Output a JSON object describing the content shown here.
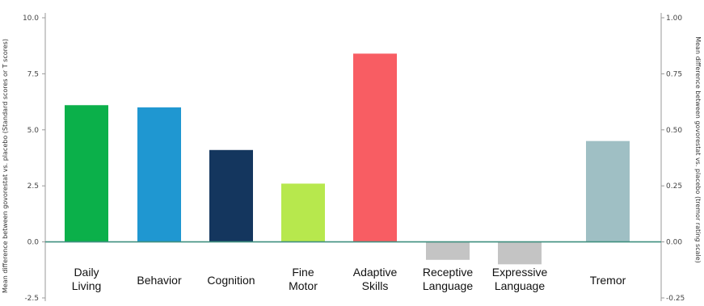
{
  "chart_data": {
    "type": "bar",
    "categories": [
      [
        "Daily",
        "Living"
      ],
      [
        "Behavior"
      ],
      [
        "Cognition"
      ],
      [
        "Fine",
        "Motor"
      ],
      [
        "Adaptive",
        "Skills"
      ],
      [
        "Receptive",
        "Language"
      ],
      [
        "Expressive",
        "Language"
      ],
      [
        "Tremor"
      ]
    ],
    "values": [
      6.1,
      6.0,
      4.1,
      2.6,
      8.4,
      -0.8,
      -1.0,
      4.5
    ],
    "axis": "left,left,left,left,left,left,left,right",
    "right_values": [
      null,
      null,
      null,
      null,
      null,
      null,
      null,
      0.45
    ],
    "colors": [
      "#0bb04a",
      "#1f97d1",
      "#14365e",
      "#b7e84d",
      "#f85d63",
      "#c4c4c4",
      "#c4c4c4",
      "#9fbfc4"
    ],
    "ylabel_left": "Mean difference between govorestat vs. placebo (Standard scores or T scores)",
    "ylabel_right": "Mean difference between govorestat vs. placebo (tremor rating scale)",
    "left_ylim": [
      -2.5,
      10.0
    ],
    "left_ticks": [
      "-2.5",
      "0.0",
      "2.5",
      "5.0",
      "7.5",
      "10.0"
    ],
    "right_ylim": [
      -0.25,
      1.0
    ],
    "right_ticks": [
      "-0.25",
      "0.00",
      "0.25",
      "0.50",
      "0.75",
      "1.00"
    ],
    "grid": false,
    "zero_line_color": "#3f8f7f"
  }
}
